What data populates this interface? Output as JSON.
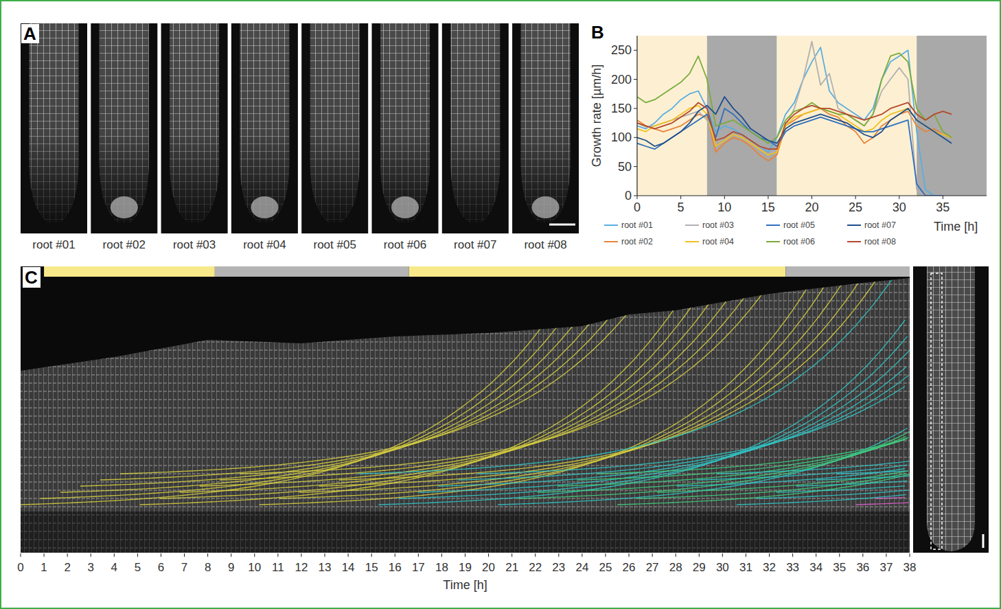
{
  "panel_a": {
    "label": "A",
    "images": [
      "root #01",
      "root #02",
      "root #03",
      "root #04",
      "root #05",
      "root #06",
      "root #07",
      "root #08"
    ]
  },
  "chart_data": {
    "type": "line",
    "panel_label": "B",
    "y_label": "Growth rate [µm/h]",
    "x_label": "Time [h]",
    "x": [
      0,
      1,
      2,
      3,
      4,
      5,
      6,
      7,
      8,
      9,
      10,
      11,
      12,
      13,
      14,
      15,
      16,
      17,
      18,
      19,
      20,
      21,
      22,
      23,
      24,
      25,
      26,
      27,
      28,
      29,
      30,
      31,
      32,
      33,
      34,
      35,
      36
    ],
    "xlim": [
      0,
      40
    ],
    "xticks": [
      0,
      5,
      10,
      15,
      20,
      25,
      30,
      35
    ],
    "ylim": [
      0,
      275
    ],
    "yticks": [
      0,
      50,
      100,
      150,
      200,
      250
    ],
    "legend": "bottom",
    "shading": [
      {
        "start": 0,
        "end": 8,
        "color": "#fdf0d2"
      },
      {
        "start": 8,
        "end": 16,
        "color": "#a9a9a9"
      },
      {
        "start": 16,
        "end": 32,
        "color": "#fdf0d2"
      },
      {
        "start": 32,
        "end": 40,
        "color": "#a9a9a9"
      }
    ],
    "series": [
      {
        "name": "root #01",
        "color": "#5aaee0",
        "values": [
          120,
          115,
          125,
          140,
          150,
          165,
          175,
          180,
          150,
          110,
          120,
          115,
          105,
          95,
          85,
          75,
          100,
          140,
          160,
          200,
          230,
          255,
          180,
          160,
          150,
          140,
          130,
          150,
          200,
          230,
          240,
          250,
          110,
          10,
          0,
          null,
          null
        ]
      },
      {
        "name": "root #02",
        "color": "#e8833a",
        "values": [
          130,
          120,
          115,
          110,
          115,
          120,
          130,
          140,
          135,
          75,
          90,
          100,
          95,
          85,
          70,
          60,
          70,
          120,
          130,
          140,
          145,
          150,
          140,
          135,
          120,
          110,
          90,
          100,
          120,
          130,
          140,
          145,
          120,
          110,
          115,
          105,
          100
        ]
      },
      {
        "name": "root #03",
        "color": "#b0b0b0",
        "values": [
          125,
          118,
          120,
          125,
          130,
          135,
          140,
          145,
          130,
          90,
          100,
          105,
          100,
          90,
          80,
          70,
          80,
          120,
          150,
          200,
          265,
          190,
          210,
          150,
          140,
          130,
          120,
          140,
          180,
          200,
          220,
          200,
          10,
          0,
          null,
          null,
          null
        ]
      },
      {
        "name": "root #04",
        "color": "#f0c020",
        "values": [
          115,
          110,
          120,
          125,
          130,
          140,
          150,
          155,
          140,
          85,
          95,
          105,
          100,
          90,
          80,
          70,
          75,
          120,
          135,
          140,
          145,
          150,
          145,
          140,
          130,
          120,
          110,
          115,
          130,
          140,
          145,
          150,
          130,
          120,
          110,
          105,
          100
        ]
      },
      {
        "name": "root #05",
        "color": "#2f6fbf",
        "values": [
          90,
          85,
          80,
          90,
          100,
          110,
          120,
          130,
          140,
          100,
          150,
          140,
          125,
          110,
          100,
          95,
          85,
          110,
          120,
          125,
          130,
          135,
          130,
          125,
          120,
          115,
          110,
          110,
          115,
          120,
          125,
          130,
          20,
          0,
          0,
          0,
          null
        ]
      },
      {
        "name": "root #06",
        "color": "#7aab3a",
        "values": [
          170,
          160,
          165,
          175,
          185,
          195,
          210,
          240,
          200,
          120,
          125,
          130,
          120,
          110,
          100,
          90,
          100,
          130,
          145,
          150,
          160,
          150,
          145,
          140,
          140,
          130,
          120,
          140,
          200,
          240,
          245,
          230,
          150,
          130,
          140,
          110,
          100
        ]
      },
      {
        "name": "root #07",
        "color": "#1f4e8c",
        "values": [
          100,
          95,
          85,
          90,
          100,
          110,
          125,
          145,
          155,
          140,
          170,
          150,
          135,
          115,
          105,
          95,
          90,
          115,
          125,
          130,
          135,
          140,
          135,
          130,
          125,
          115,
          105,
          100,
          110,
          130,
          140,
          150,
          130,
          120,
          110,
          100,
          90
        ]
      },
      {
        "name": "root #08",
        "color": "#b5482a",
        "values": [
          125,
          120,
          115,
          120,
          125,
          135,
          145,
          160,
          150,
          95,
          100,
          110,
          105,
          95,
          85,
          80,
          80,
          125,
          140,
          150,
          155,
          150,
          150,
          145,
          140,
          135,
          130,
          135,
          140,
          150,
          155,
          160,
          140,
          130,
          140,
          145,
          140
        ]
      }
    ]
  },
  "panel_c": {
    "label": "C",
    "x_label": "Time [h]",
    "xlim": [
      0,
      38
    ],
    "xticks": [
      0,
      1,
      2,
      3,
      4,
      5,
      6,
      7,
      8,
      9,
      10,
      11,
      12,
      13,
      14,
      15,
      16,
      17,
      18,
      19,
      20,
      21,
      22,
      23,
      24,
      25,
      26,
      27,
      28,
      29,
      30,
      31,
      32,
      33,
      34,
      35,
      36,
      37,
      38
    ],
    "periods": [
      {
        "start": 1,
        "end": 8.3,
        "color": "#f7e98a"
      },
      {
        "start": 8.3,
        "end": 16.6,
        "color": "#b4b4b4"
      },
      {
        "start": 16.6,
        "end": 32.7,
        "color": "#f7e98a"
      },
      {
        "start": 32.7,
        "end": 38,
        "color": "#b4b4b4"
      }
    ]
  }
}
